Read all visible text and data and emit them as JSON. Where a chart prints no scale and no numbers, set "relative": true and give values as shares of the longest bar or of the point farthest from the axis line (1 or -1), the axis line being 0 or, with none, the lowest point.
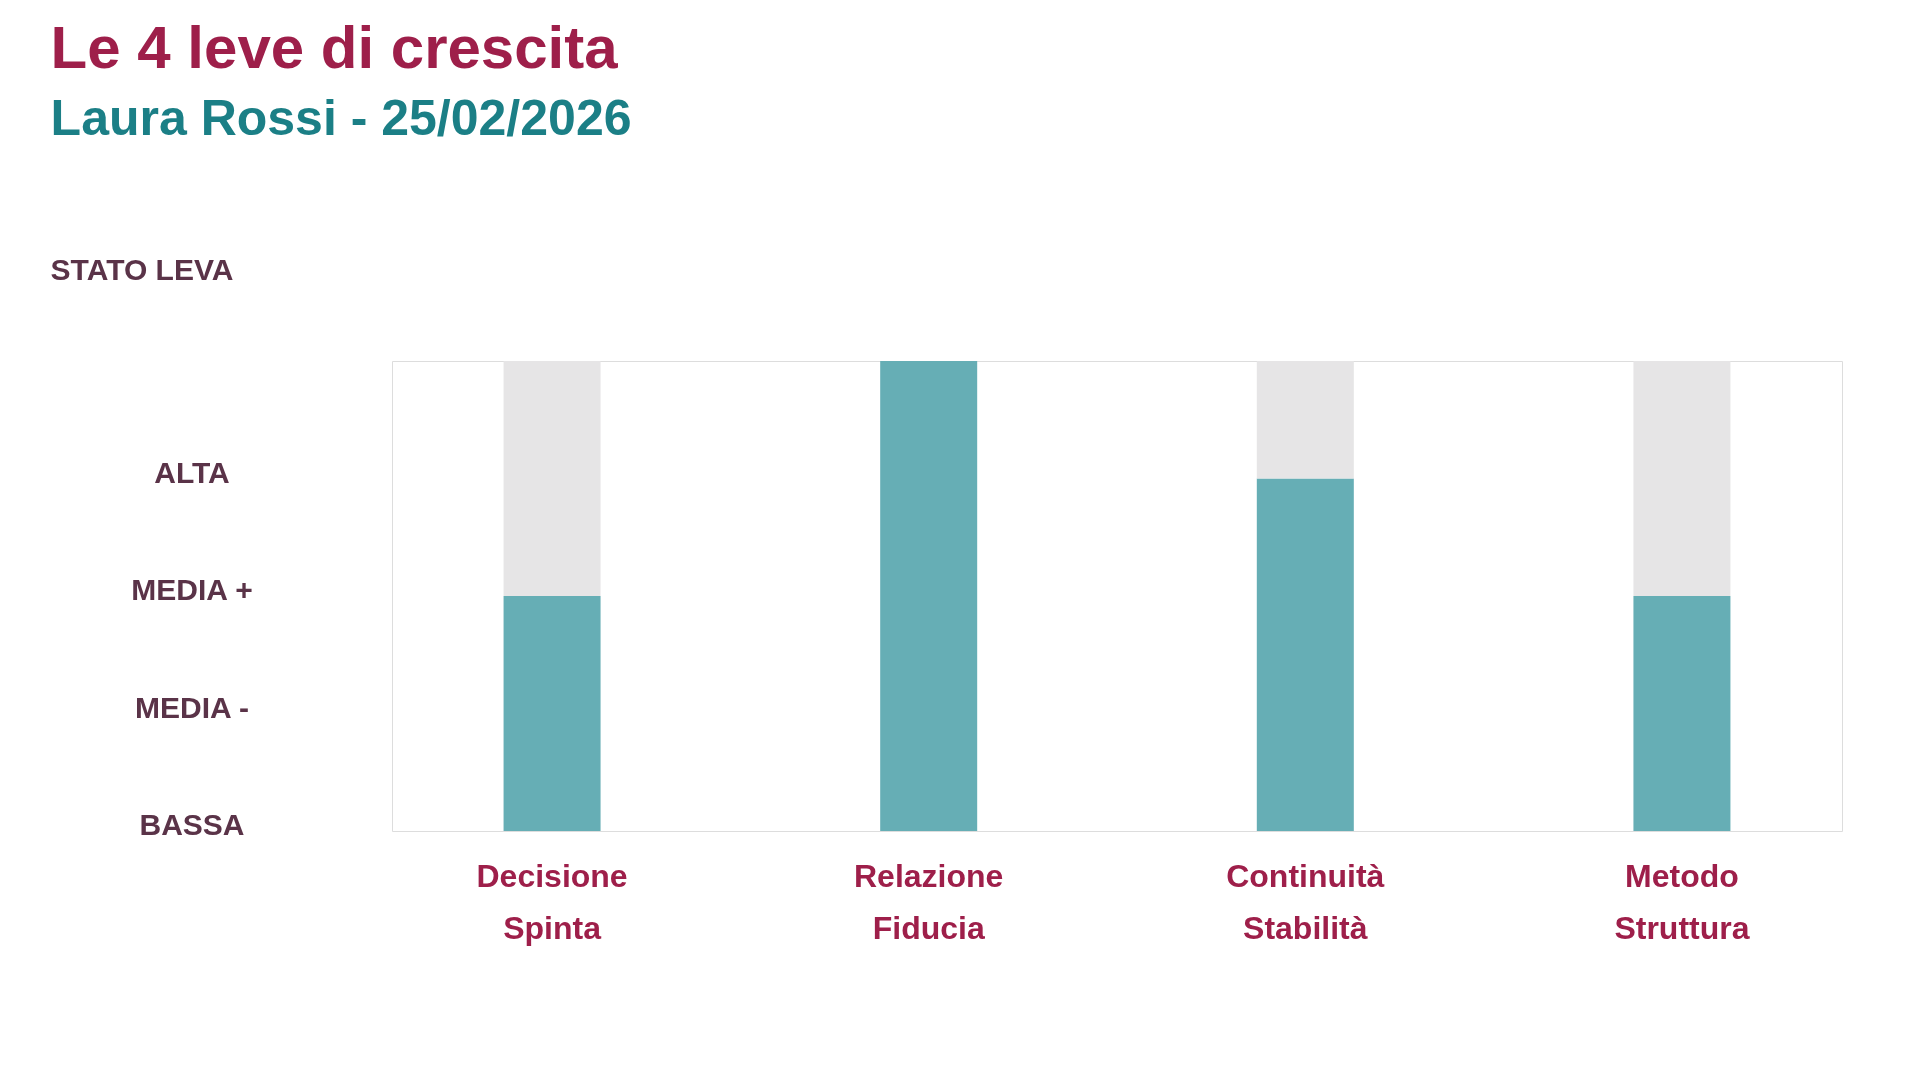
{
  "chart_data": {
    "type": "bar",
    "title": "Le 4 leve di crescita",
    "subtitle": "Laura Rossi - 25/02/2026",
    "stacked": true,
    "relative": true,
    "categories": [
      "Decisione\nSpinta",
      "Relazione\nFiducia",
      "Continuità\nStabilità",
      "Metodo\nStruttura"
    ],
    "series": [
      {
        "color": "#66aeb5",
        "values": [
          0.5,
          1,
          0.75,
          0.5
        ]
      },
      {
        "color": "#e6e5e6",
        "values": [
          0.5,
          0,
          0.25,
          0.5
        ]
      }
    ],
    "grid": false,
    "legend": false,
    "annotations": [
      "STATO LEVA",
      "ALTA",
      "MEDIA +",
      "MEDIA -",
      "BASSA"
    ]
  }
}
